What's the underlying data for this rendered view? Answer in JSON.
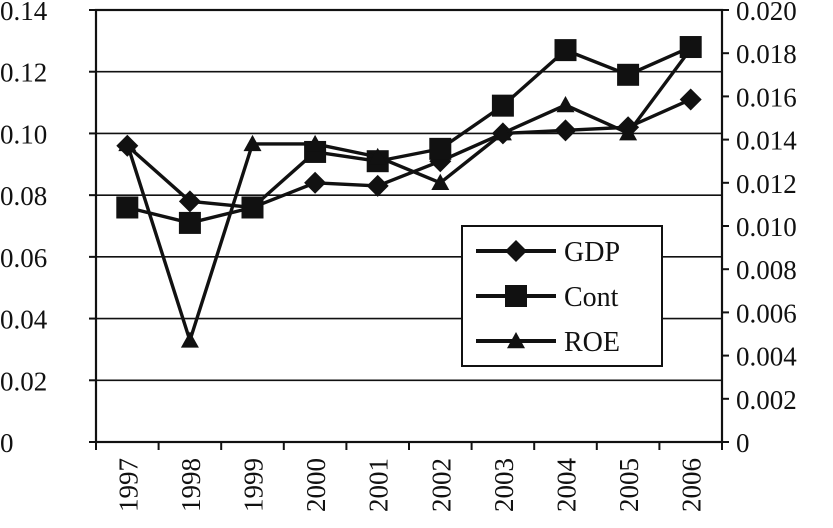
{
  "chart_data": {
    "type": "line",
    "categories": [
      "1997",
      "1998",
      "1999",
      "2000",
      "2001",
      "2002",
      "2003",
      "2004",
      "2005",
      "2006"
    ],
    "series": [
      {
        "name": "GDP",
        "axis": "left",
        "marker": "diamond",
        "values": [
          0.096,
          0.078,
          0.076,
          0.084,
          0.083,
          0.091,
          0.1,
          0.101,
          0.102,
          0.111
        ]
      },
      {
        "name": "Cont",
        "axis": "left",
        "marker": "square",
        "values": [
          0.076,
          0.071,
          0.076,
          0.094,
          0.091,
          0.095,
          0.109,
          0.127,
          0.119,
          0.128
        ]
      },
      {
        "name": "ROE",
        "axis": "right",
        "marker": "triangle",
        "values": [
          0.0138,
          0.0047,
          0.0138,
          0.0138,
          0.0132,
          0.012,
          0.0143,
          0.0156,
          0.0143,
          0.0182
        ]
      }
    ],
    "y_left": {
      "min": 0,
      "max": 0.14,
      "ticks": [
        "0",
        "0.02",
        "0.04",
        "0.06",
        "0.08",
        "0.10",
        "0.12",
        "0.14"
      ]
    },
    "y_right": {
      "min": 0,
      "max": 0.02,
      "ticks": [
        "0",
        "0.002",
        "0.004",
        "0.006",
        "0.008",
        "0.010",
        "0.012",
        "0.014",
        "0.016",
        "0.018",
        "0.020"
      ]
    },
    "title": "",
    "xlabel": "",
    "ylabel": "",
    "grid": "horizontal",
    "legend_position": "bottom-right",
    "colors": {
      "line": "#111111",
      "grid": "#111111",
      "background": "#ffffff"
    }
  }
}
